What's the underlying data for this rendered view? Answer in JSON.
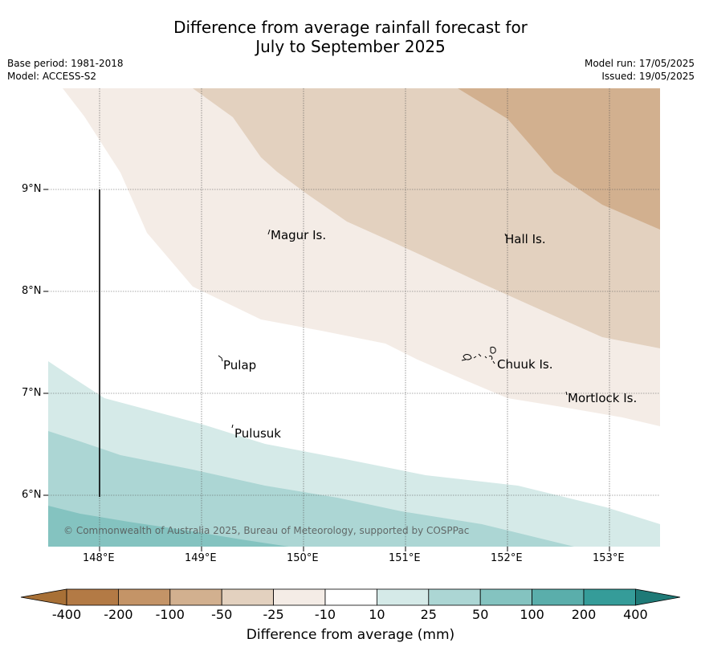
{
  "title": {
    "line1": "Difference from average rainfall forecast for",
    "line2": "July to September 2025"
  },
  "meta": {
    "base_period": "Base period: 1981-2018",
    "model": "Model: ACCESS-S2",
    "model_run": "Model run: 17/05/2025",
    "issued": "Issued: 19/05/2025"
  },
  "map": {
    "lat_labels": [
      "9°N",
      "8°N",
      "7°N",
      "6°N"
    ],
    "lon_labels": [
      "148°E",
      "149°E",
      "150°E",
      "151°E",
      "152°E",
      "153°E"
    ],
    "places": [
      {
        "name": "Magur Is."
      },
      {
        "name": "Hall Is."
      },
      {
        "name": "Pulap"
      },
      {
        "name": "Chuuk Is."
      },
      {
        "name": "Mortlock Is."
      },
      {
        "name": "Pulusuk"
      }
    ],
    "copyright": "© Commonwealth of Australia 2025, Bureau of Meteorology, supported by COSPPac"
  },
  "colorbar": {
    "title": "Difference from average (mm)",
    "ticks": [
      "-400",
      "-200",
      "-100",
      "-50",
      "-25",
      "-10",
      "10",
      "25",
      "50",
      "100",
      "200",
      "400"
    ],
    "colors": [
      "#a87036",
      "#b37a45",
      "#c49467",
      "#d2b08f",
      "#e3d1bf",
      "#f4ece6",
      "#ffffff",
      "#d5eae8",
      "#acd6d4",
      "#84c3c0",
      "#5aaeab",
      "#359c99",
      "#1f7a77"
    ]
  }
}
